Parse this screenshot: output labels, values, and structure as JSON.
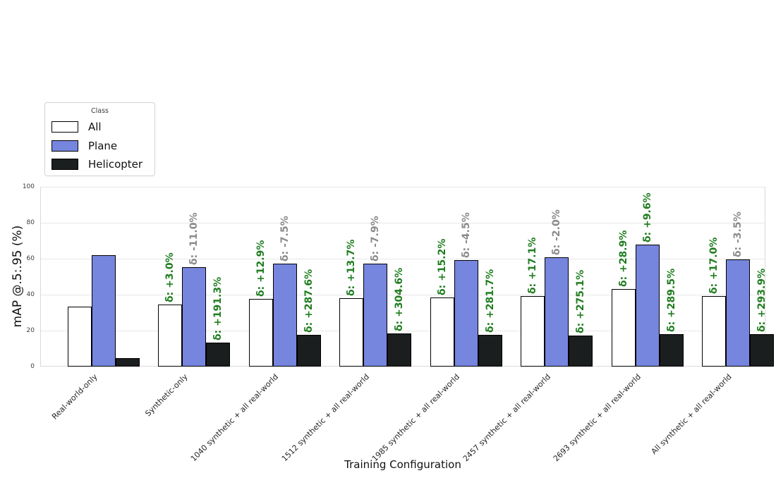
{
  "axes": {
    "y_label": "mAP @.5:.95 (%)",
    "x_label": "Training Configuration",
    "y_ticks": [
      0,
      20,
      40,
      60,
      80,
      100
    ],
    "y_max": 100
  },
  "legend": {
    "title": "Class",
    "entries": [
      {
        "label": "All",
        "color": "#ffffff"
      },
      {
        "label": "Plane",
        "color": "#7685de"
      },
      {
        "label": "Helicopter",
        "color": "#1b1e1e"
      }
    ]
  },
  "chart_data": {
    "type": "bar",
    "title": "",
    "xlabel": "Training Configuration",
    "ylabel": "mAP @.5:.95 (%)",
    "ylim": [
      0,
      100
    ],
    "grid": true,
    "legend_position": "upper left outside",
    "legend_title": "Class",
    "categories": [
      "Real-world-only",
      "Synthetic-only",
      "1040 synthetic + all real-world",
      "1512 synthetic + all real-world",
      "1985 synthetic + all real-world",
      "2457 synthetic + all real-world",
      "2693 synthetic + all real-world",
      "All synthetic + all real-world"
    ],
    "series": [
      {
        "name": "All",
        "color": "#ffffff",
        "values": [
          33.4,
          34.4,
          37.7,
          38.0,
          38.5,
          39.1,
          43.1,
          39.1
        ],
        "annotations": [
          null,
          "δ: +3.0%",
          "δ: +12.9%",
          "δ: +13.7%",
          "δ: +15.2%",
          "δ: +17.1%",
          "δ: +28.9%",
          "δ: +17.0%"
        ],
        "annotation_colors": [
          null,
          "green",
          "green",
          "green",
          "green",
          "green",
          "green",
          "green"
        ]
      },
      {
        "name": "Plane",
        "color": "#7685de",
        "values": [
          62.0,
          55.2,
          57.4,
          57.1,
          59.2,
          60.8,
          67.9,
          59.8
        ],
        "annotations": [
          null,
          "δ: -11.0%",
          "δ: -7.5%",
          "δ: -7.9%",
          "δ: -4.5%",
          "δ: -2.0%",
          "δ: +9.6%",
          "δ: -3.5%"
        ],
        "annotation_colors": [
          null,
          "gray",
          "gray",
          "gray",
          "gray",
          "gray",
          "green",
          "gray"
        ]
      },
      {
        "name": "Helicopter",
        "color": "#1b1e1e",
        "values": [
          4.6,
          13.4,
          17.8,
          18.6,
          17.6,
          17.3,
          17.9,
          18.1
        ],
        "annotations": [
          null,
          "δ: +191.3%",
          "δ: +287.6%",
          "δ: +304.6%",
          "δ: +281.7%",
          "δ: +275.1%",
          "δ: +289.5%",
          "δ: +293.9%"
        ],
        "annotation_colors": [
          null,
          "green",
          "green",
          "green",
          "green",
          "green",
          "green",
          "green"
        ]
      }
    ],
    "annotation_palette": {
      "green": "#1f7d1f",
      "gray": "#8a8a8a"
    }
  }
}
